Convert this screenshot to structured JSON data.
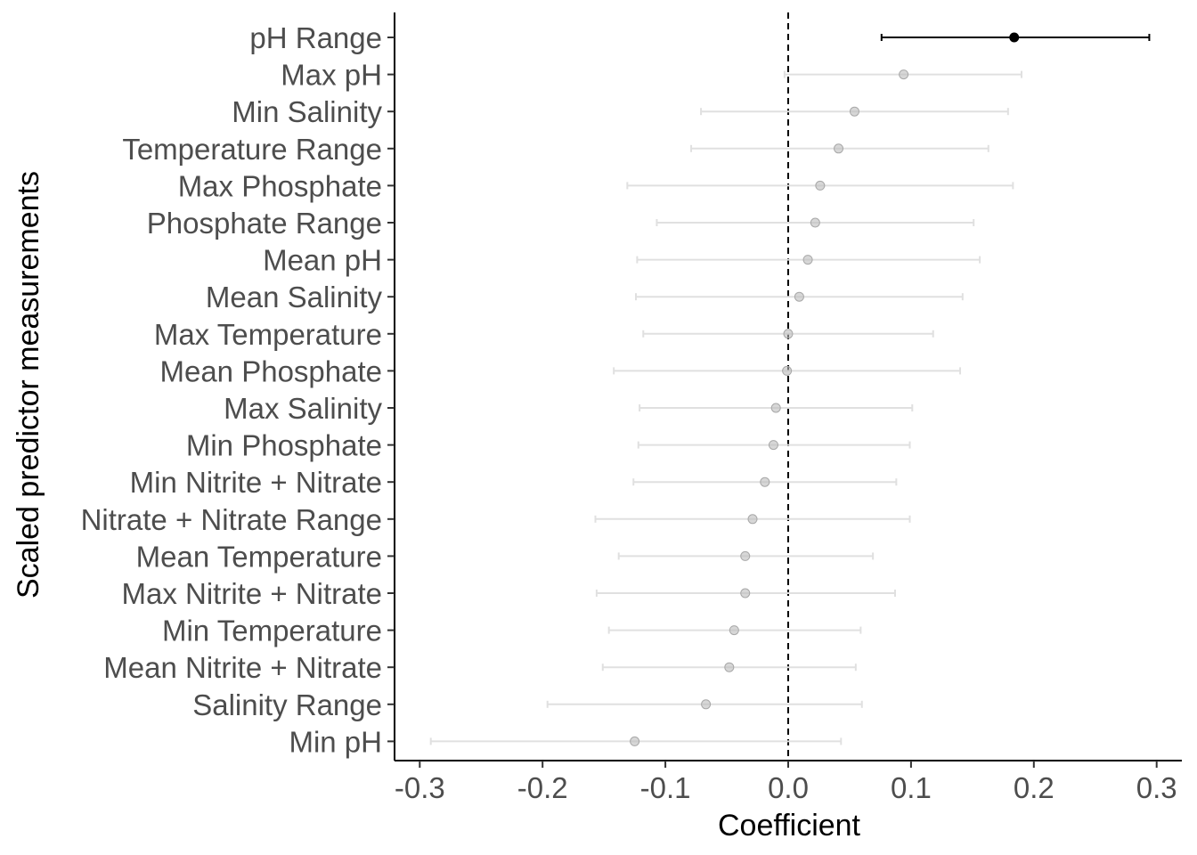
{
  "chart_data": {
    "type": "scatter",
    "subtype": "coefficient-plot-with-error-bars",
    "title": "",
    "xlabel": "Coefficient",
    "ylabel": "Scaled predictor measurements",
    "xlim": [
      -0.32,
      0.32
    ],
    "xticks": [
      -0.3,
      -0.2,
      -0.1,
      0.0,
      0.1,
      0.2,
      0.3
    ],
    "xtick_labels": [
      "-0.3",
      "-0.2",
      "-0.1",
      "0.0",
      "0.1",
      "0.2",
      "0.3"
    ],
    "reference_line": {
      "x": 0.0,
      "style": "dashed"
    },
    "grid": false,
    "legend": "none",
    "colors": {
      "significant": "#000000",
      "non_significant": "#bdbdbd",
      "error_bar_ns": "#e0e0e0"
    },
    "points": [
      {
        "label": "pH Range",
        "estimate": 0.184,
        "low": 0.076,
        "high": 0.294,
        "significant": true
      },
      {
        "label": "Max pH",
        "estimate": 0.094,
        "low": -0.003,
        "high": 0.19,
        "significant": false
      },
      {
        "label": "Min Salinity",
        "estimate": 0.054,
        "low": -0.071,
        "high": 0.179,
        "significant": false
      },
      {
        "label": "Temperature Range",
        "estimate": 0.041,
        "low": -0.079,
        "high": 0.163,
        "significant": false
      },
      {
        "label": "Max Phosphate",
        "estimate": 0.026,
        "low": -0.131,
        "high": 0.183,
        "significant": false
      },
      {
        "label": "Phosphate Range",
        "estimate": 0.022,
        "low": -0.107,
        "high": 0.151,
        "significant": false
      },
      {
        "label": "Mean pH",
        "estimate": 0.016,
        "low": -0.123,
        "high": 0.156,
        "significant": false
      },
      {
        "label": "Mean Salinity",
        "estimate": 0.009,
        "low": -0.124,
        "high": 0.142,
        "significant": false
      },
      {
        "label": "Max Temperature",
        "estimate": 0.0,
        "low": -0.118,
        "high": 0.118,
        "significant": false
      },
      {
        "label": "Mean Phosphate",
        "estimate": -0.001,
        "low": -0.142,
        "high": 0.14,
        "significant": false
      },
      {
        "label": "Max Salinity",
        "estimate": -0.01,
        "low": -0.121,
        "high": 0.101,
        "significant": false
      },
      {
        "label": "Min Phosphate",
        "estimate": -0.012,
        "low": -0.122,
        "high": 0.099,
        "significant": false
      },
      {
        "label": "Min Nitrite + Nitrate",
        "estimate": -0.019,
        "low": -0.126,
        "high": 0.088,
        "significant": false
      },
      {
        "label": "Nitrate + Nitrate Range",
        "estimate": -0.029,
        "low": -0.157,
        "high": 0.099,
        "significant": false
      },
      {
        "label": "Mean Temperature",
        "estimate": -0.035,
        "low": -0.138,
        "high": 0.069,
        "significant": false
      },
      {
        "label": "Max Nitrite + Nitrate",
        "estimate": -0.035,
        "low": -0.156,
        "high": 0.087,
        "significant": false
      },
      {
        "label": "Min Temperature",
        "estimate": -0.044,
        "low": -0.146,
        "high": 0.059,
        "significant": false
      },
      {
        "label": "Mean Nitrite + Nitrate",
        "estimate": -0.048,
        "low": -0.151,
        "high": 0.055,
        "significant": false
      },
      {
        "label": "Salinity Range",
        "estimate": -0.067,
        "low": -0.196,
        "high": 0.06,
        "significant": false
      },
      {
        "label": "Min pH",
        "estimate": -0.125,
        "low": -0.291,
        "high": 0.043,
        "significant": false
      }
    ]
  }
}
